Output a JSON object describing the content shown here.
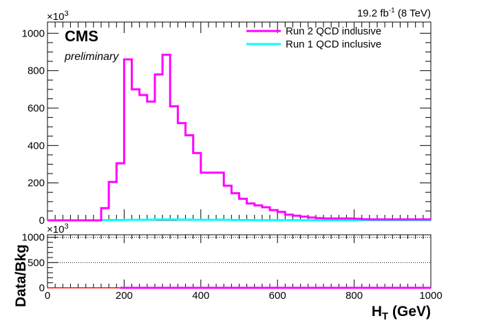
{
  "header": {
    "lumi_value": "19.2 fb",
    "lumi_exp": "-1",
    "lumi_energy": " (8 TeV)",
    "experiment": "CMS",
    "status": "preliminary"
  },
  "chart_data": [
    {
      "type": "line",
      "panel": "main",
      "multiplier_base": "×10",
      "multiplier_exp": "3",
      "xlim": [
        0,
        1000
      ],
      "ylim": [
        0,
        1060
      ],
      "y_ticks": [
        0,
        200,
        400,
        600,
        800,
        1000
      ],
      "y_tick_labels": [
        "0",
        "200",
        "400",
        "600",
        "800",
        "1000"
      ],
      "legend_position": "top-right",
      "bin_edges": [
        0,
        20,
        40,
        60,
        80,
        100,
        120,
        140,
        160,
        180,
        200,
        220,
        240,
        260,
        280,
        300,
        320,
        340,
        360,
        380,
        400,
        420,
        440,
        460,
        480,
        500,
        520,
        540,
        560,
        580,
        600,
        620,
        640,
        660,
        680,
        700,
        720,
        740,
        760,
        780,
        800,
        820,
        840,
        860,
        880,
        900,
        920,
        940,
        960,
        980,
        1000
      ],
      "series": [
        {
          "name": "Run 2 QCD inclusive",
          "color": "#ff00ff",
          "values": [
            0,
            0,
            0,
            0,
            0,
            0,
            0,
            65,
            205,
            305,
            860,
            700,
            670,
            635,
            780,
            885,
            610,
            520,
            455,
            360,
            255,
            255,
            255,
            185,
            145,
            115,
            90,
            80,
            70,
            55,
            45,
            30,
            25,
            20,
            15,
            12,
            10,
            10,
            10,
            10,
            8,
            6,
            5,
            5,
            5,
            5,
            5,
            5,
            5,
            5
          ]
        },
        {
          "name": "Run 1 QCD inclusive",
          "color": "#00ffff",
          "values": [
            0,
            0,
            0,
            0,
            0,
            0,
            0,
            1,
            2,
            2,
            3,
            3,
            3,
            4,
            5,
            5,
            5,
            4,
            4,
            3,
            3,
            3,
            4,
            3,
            2,
            2,
            2,
            1,
            1,
            1,
            1,
            1,
            1,
            1,
            1,
            1,
            1,
            1,
            1,
            1,
            1,
            1,
            1,
            1,
            1,
            1,
            1,
            1,
            1,
            1
          ]
        }
      ]
    },
    {
      "type": "line",
      "panel": "ratio",
      "multiplier_base": "×10",
      "multiplier_exp": "3",
      "ylabel": "Data/Bkg",
      "xlim": [
        0,
        1000
      ],
      "ylim": [
        0,
        1050
      ],
      "x_ticks": [
        0,
        200,
        400,
        600,
        800,
        1000
      ],
      "x_tick_labels": [
        "0",
        "200",
        "400",
        "600",
        "800",
        "1000"
      ],
      "y_ticks": [
        0,
        500,
        1000
      ],
      "y_tick_labels": [
        "0",
        "500",
        "1000"
      ],
      "xlabel_main": "H",
      "xlabel_sub": "T",
      "xlabel_unit": " (GeV)",
      "series": [
        {
          "name": "",
          "color": "#ff00ff",
          "x_range": [
            190,
            1000
          ],
          "value": 0
        },
        {
          "name": "",
          "color": "#ff0000",
          "x_range": [
            0,
            190
          ],
          "value": 0
        }
      ]
    }
  ]
}
